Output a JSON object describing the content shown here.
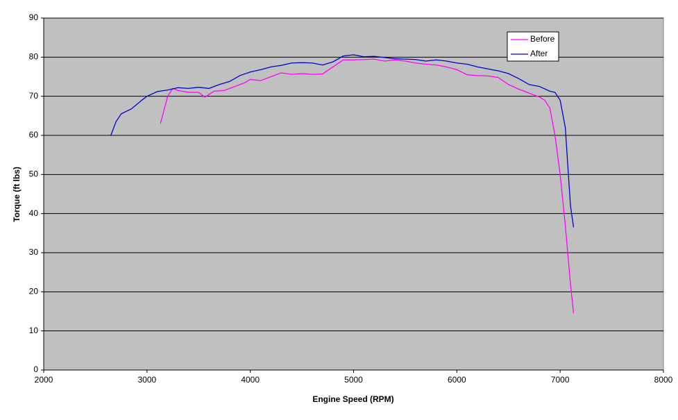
{
  "chart_data": {
    "type": "line",
    "xlabel": "Engine Speed (RPM)",
    "ylabel": "Torque (ft lbs)",
    "xlim": [
      2000,
      8000
    ],
    "xticks": [
      2000,
      3000,
      4000,
      5000,
      6000,
      7000,
      8000
    ],
    "ylim": [
      0,
      90
    ],
    "yticks": [
      0,
      10,
      20,
      30,
      40,
      50,
      60,
      70,
      80,
      90
    ],
    "grid": true,
    "legend": "upper right",
    "series": [
      {
        "name": "Before",
        "color": "#ff00ff",
        "x": [
          3130,
          3200,
          3250,
          3300,
          3400,
          3500,
          3560,
          3650,
          3750,
          3850,
          3950,
          4000,
          4100,
          4200,
          4300,
          4400,
          4500,
          4600,
          4700,
          4800,
          4900,
          5000,
          5100,
          5200,
          5300,
          5400,
          5500,
          5600,
          5700,
          5800,
          5900,
          6000,
          6100,
          6200,
          6300,
          6400,
          6500,
          6600,
          6700,
          6800,
          6850,
          6900,
          6950,
          7000,
          7050,
          7100,
          7130
        ],
        "values": [
          63,
          70,
          72,
          71.5,
          71,
          71,
          69.8,
          71.3,
          71.5,
          72.5,
          73.5,
          74.3,
          74,
          75,
          76,
          75.6,
          75.8,
          75.6,
          75.7,
          77.5,
          79.3,
          79.3,
          79.4,
          79.5,
          79,
          79.3,
          79,
          78.5,
          78.2,
          78,
          77.5,
          76.8,
          75.5,
          75.3,
          75.2,
          74.8,
          73,
          71.8,
          70.8,
          69.8,
          69,
          67,
          60,
          50,
          37,
          22,
          14.5
        ]
      },
      {
        "name": "After",
        "color": "#0000cc",
        "x": [
          2650,
          2700,
          2750,
          2850,
          2950,
          3000,
          3100,
          3200,
          3300,
          3400,
          3500,
          3600,
          3700,
          3800,
          3900,
          4000,
          4100,
          4200,
          4300,
          4400,
          4500,
          4600,
          4700,
          4800,
          4900,
          5000,
          5100,
          5200,
          5300,
          5400,
          5500,
          5600,
          5700,
          5800,
          5900,
          6000,
          6100,
          6200,
          6300,
          6400,
          6500,
          6600,
          6700,
          6800,
          6900,
          6950,
          7000,
          7050,
          7080,
          7100,
          7130
        ],
        "values": [
          60,
          63.5,
          65.5,
          66.8,
          69,
          70,
          71.2,
          71.6,
          72.2,
          72,
          72.3,
          72,
          73,
          73.8,
          75.3,
          76.2,
          76.8,
          77.5,
          77.9,
          78.5,
          78.6,
          78.5,
          78,
          78.8,
          80.3,
          80.6,
          80.1,
          80.2,
          79.9,
          79.6,
          79.5,
          79.4,
          79,
          79.3,
          79,
          78.5,
          78.2,
          77.5,
          77,
          76.5,
          75.8,
          74.5,
          73,
          72.5,
          71.3,
          71,
          69,
          62,
          50,
          42,
          36.5
        ]
      }
    ]
  }
}
